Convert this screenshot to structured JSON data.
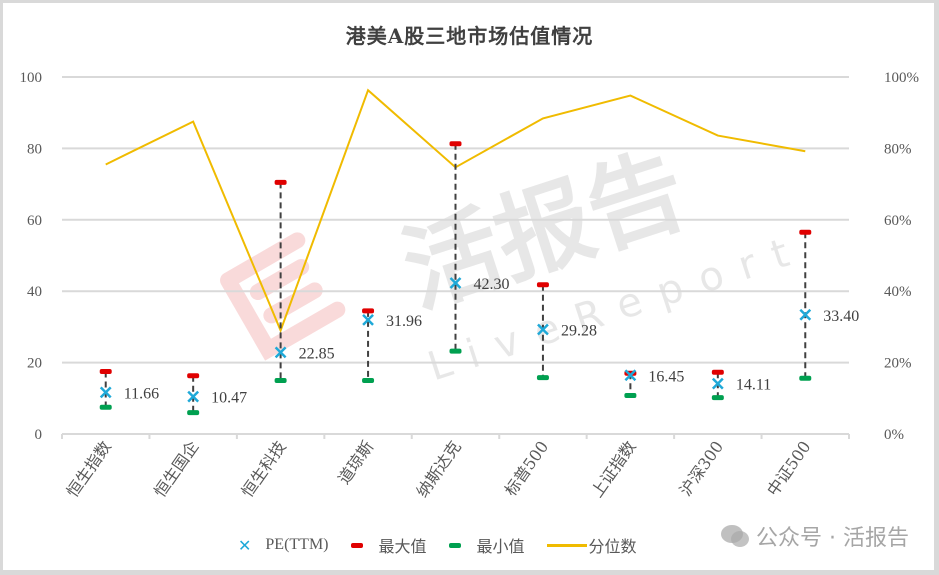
{
  "title": "港美A股三地市场估值情况",
  "left_axis": {
    "ticks": [
      "0",
      "20",
      "40",
      "60",
      "80",
      "100"
    ],
    "min": 0,
    "max": 100
  },
  "right_axis": {
    "ticks": [
      "0%",
      "20%",
      "40%",
      "60%",
      "80%",
      "100%"
    ],
    "min": 0,
    "max": 1
  },
  "legend": {
    "pe": "PE(TTM)",
    "max": "最大值",
    "min": "最小值",
    "pct": "分位数"
  },
  "colors": {
    "pe": "#1fa9d8",
    "max": "#e00000",
    "min": "#00a050",
    "percentile": "#f0bb00",
    "gridline": "#d9d9d9",
    "range_line": "#404040"
  },
  "watermark": {
    "center_text": "活报告",
    "center_subtext": "LiveReport",
    "corner_text": "公众号 · 活报告"
  },
  "chart_data": {
    "type": "scatter+line",
    "title": "港美A股三地市场估值情况",
    "categories": [
      "恒生指数",
      "恒生国企",
      "恒生科技",
      "道琼斯",
      "纳斯达克",
      "标普500",
      "上证指数",
      "沪深300",
      "中证500"
    ],
    "series": [
      {
        "name": "PE(TTM)",
        "axis": "left",
        "marker": "x",
        "values": [
          11.66,
          10.47,
          22.85,
          31.96,
          42.3,
          29.28,
          16.45,
          14.11,
          33.4
        ],
        "labels": [
          "11.66",
          "10.47",
          "22.85",
          "31.96",
          "42.30",
          "29.28",
          "16.45",
          "14.11",
          "33.40"
        ]
      },
      {
        "name": "最大值",
        "axis": "left",
        "marker": "dash",
        "values": [
          17.5,
          16.3,
          70.5,
          34.5,
          81.3,
          41.8,
          17.0,
          17.3,
          56.5
        ]
      },
      {
        "name": "最小值",
        "axis": "left",
        "marker": "dash",
        "values": [
          7.5,
          6.0,
          15.0,
          15.0,
          23.2,
          15.8,
          10.8,
          10.2,
          15.6
        ]
      },
      {
        "name": "分位数",
        "axis": "right",
        "type": "line",
        "values": [
          0.755,
          0.875,
          0.29,
          0.963,
          0.747,
          0.884,
          0.948,
          0.836,
          0.792
        ]
      }
    ],
    "xlabel": "",
    "ylabel": "",
    "ylim": [
      0,
      100
    ],
    "y2lim": [
      0,
      1
    ],
    "grid": true,
    "legend_position": "bottom"
  }
}
